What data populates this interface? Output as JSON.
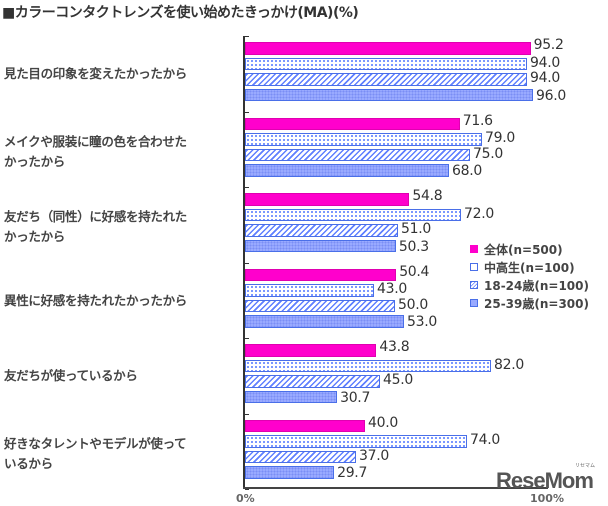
{
  "title": "■カラーコンタクトレンズを使い始めたきっかけ(MA)(%)",
  "legend": [
    {
      "label": "全体(n=500)",
      "color": "#ff00cc",
      "pattern": "solid"
    },
    {
      "label": "中高生(n=100)",
      "color": "#4a6fe8",
      "pattern": "dotted-white"
    },
    {
      "label": "18-24歳(n=100)",
      "color": "#4a6fe8",
      "pattern": "diagonal-hatch"
    },
    {
      "label": "25-39歳(n=300)",
      "color": "#99aaff",
      "pattern": "dotted-fill"
    }
  ],
  "x_ticks": {
    "min_label": "0%",
    "max_label": "100%"
  },
  "logo": {
    "text": "ReseMom",
    "ruby": "リセマム"
  },
  "values_text": [
    [
      "95.2",
      "94.0",
      "94.0",
      "96.0"
    ],
    [
      "71.6",
      "79.0",
      "75.0",
      "68.0"
    ],
    [
      "54.8",
      "72.0",
      "51.0",
      "50.3"
    ],
    [
      "50.4",
      "43.0",
      "50.0",
      "53.0"
    ],
    [
      "43.8",
      "82.0",
      "45.0",
      "30.7"
    ],
    [
      "40.0",
      "74.0",
      "37.0",
      "29.7"
    ]
  ],
  "categories_text": [
    {
      "line1": "見た目の印象を変えたかったから",
      "line2": ""
    },
    {
      "line1": "メイクや服装に瞳の色を合わせた",
      "line2": "かったから"
    },
    {
      "line1": "友だち（同性）に好感を持たれた",
      "line2": "かったから"
    },
    {
      "line1": "異性に好感を持たれたかったから",
      "line2": ""
    },
    {
      "line1": "友だちが使っているから",
      "line2": ""
    },
    {
      "line1": "好きなタレントやモデルが使って",
      "line2": "いるから"
    }
  ],
  "chart_data": {
    "type": "bar",
    "orientation": "horizontal",
    "title": "カラーコンタクトレンズを使い始めたきっかけ(MA)(%)",
    "xlabel": "",
    "ylabel": "",
    "xlim": [
      0,
      100
    ],
    "x_tick_labels": [
      "0%",
      "100%"
    ],
    "grid": false,
    "legend_position": "right",
    "categories": [
      "見た目の印象を変えたかったから",
      "メイクや服装に瞳の色を合わせたかったから",
      "友だち（同性）に好感を持たれたかったから",
      "異性に好感を持たれたかったから",
      "友だちが使っているから",
      "好きなタレントやモデルが使っているから"
    ],
    "series": [
      {
        "name": "全体(n=500)",
        "values": [
          95.2,
          71.6,
          54.8,
          50.4,
          43.8,
          40.0
        ]
      },
      {
        "name": "中高生(n=100)",
        "values": [
          94.0,
          79.0,
          72.0,
          43.0,
          82.0,
          74.0
        ]
      },
      {
        "name": "18-24歳(n=100)",
        "values": [
          94.0,
          75.0,
          51.0,
          50.0,
          45.0,
          37.0
        ]
      },
      {
        "name": "25-39歳(n=300)",
        "values": [
          96.0,
          68.0,
          50.3,
          53.0,
          30.7,
          29.7
        ]
      }
    ]
  }
}
